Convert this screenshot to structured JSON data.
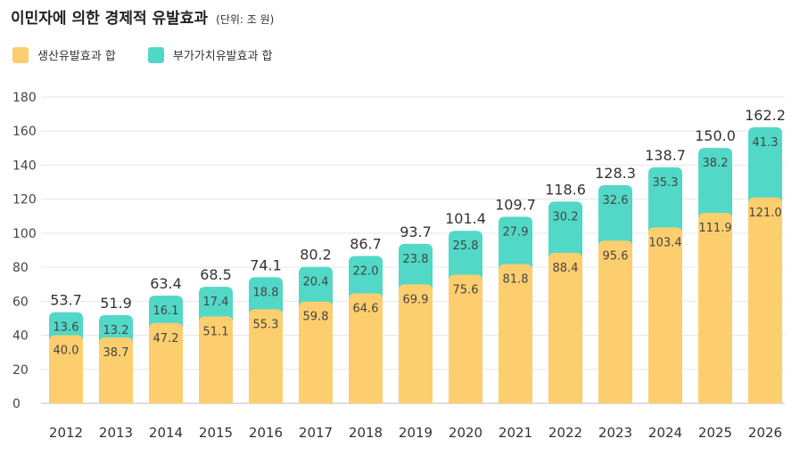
{
  "title": "이민자에 의한 경제적 유발효과",
  "unit": "(단위: 조 원)",
  "colors": {
    "production": "#FDCE6E",
    "value_added": "#52D8C7",
    "grid": "#E6E6E6",
    "axis": "#BDBDBD"
  },
  "chart_data": {
    "type": "bar",
    "stacked": true,
    "categories": [
      "2012",
      "2013",
      "2014",
      "2015",
      "2016",
      "2017",
      "2018",
      "2019",
      "2020",
      "2021",
      "2022",
      "2023",
      "2024",
      "2025",
      "2026"
    ],
    "series": [
      {
        "name": "생산유발효과 합",
        "values": [
          40.0,
          38.7,
          47.2,
          51.1,
          55.3,
          59.8,
          64.6,
          69.9,
          75.6,
          81.8,
          88.4,
          95.6,
          103.4,
          111.9,
          121.0
        ]
      },
      {
        "name": "부가가치유발효과 합",
        "values": [
          13.6,
          13.2,
          16.1,
          17.4,
          18.8,
          20.4,
          22.0,
          23.8,
          25.8,
          27.9,
          30.2,
          32.6,
          35.3,
          38.2,
          41.3
        ]
      }
    ],
    "totals": [
      53.7,
      51.9,
      63.4,
      68.5,
      74.1,
      80.2,
      86.7,
      93.7,
      101.4,
      109.7,
      118.6,
      128.3,
      138.7,
      150.0,
      162.2
    ],
    "ylim": [
      0,
      180
    ],
    "yticks": [
      0,
      20,
      40,
      60,
      80,
      100,
      120,
      140,
      160,
      180
    ],
    "grid": true,
    "legend": "top-left"
  }
}
